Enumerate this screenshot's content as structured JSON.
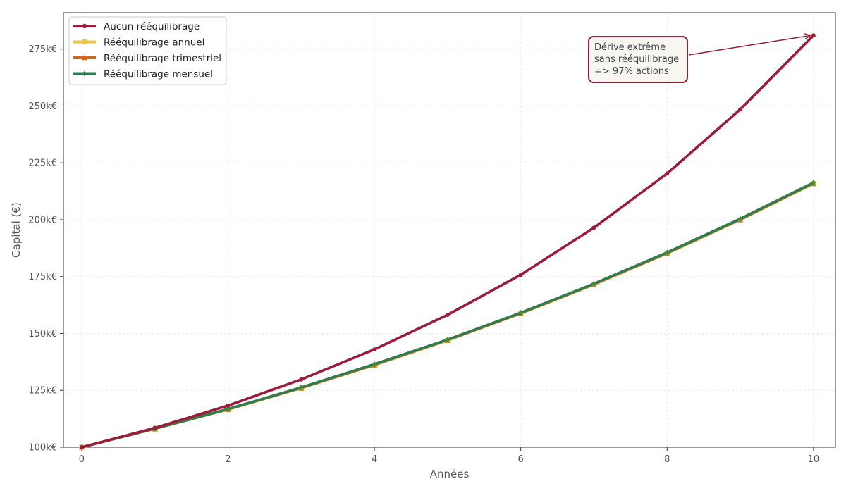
{
  "chart_data": {
    "type": "line",
    "xlabel": "Années",
    "ylabel": "Capital (€)",
    "xlim": [
      -0.25,
      10.3
    ],
    "ylim": [
      100000,
      291000
    ],
    "x_ticks": [
      0,
      2,
      4,
      6,
      8,
      10
    ],
    "x_tick_labels": [
      "0",
      "2",
      "4",
      "6",
      "8",
      "10"
    ],
    "y_ticks": [
      100000,
      125000,
      150000,
      175000,
      200000,
      225000,
      250000,
      275000
    ],
    "y_tick_labels": [
      "100k€",
      "125k€",
      "150k€",
      "175k€",
      "200k€",
      "225k€",
      "250k€",
      "275k€"
    ],
    "grid": true,
    "legend_position": "top-left",
    "x": [
      0,
      1,
      2,
      3,
      4,
      5,
      6,
      7,
      8,
      9,
      10
    ],
    "series": [
      {
        "name": "Aucun rééquilibrage",
        "color": "#9b1b3a",
        "marker": "circle",
        "values": [
          100000,
          108500,
          118300,
          129800,
          143000,
          158200,
          175800,
          196500,
          220300,
          248500,
          281000
        ]
      },
      {
        "name": "Rééquilibrage annuel",
        "color": "#e8c547",
        "marker": "square",
        "values": [
          100000,
          108000,
          116500,
          125900,
          136000,
          146900,
          158700,
          171400,
          185100,
          199900,
          215800
        ]
      },
      {
        "name": "Rééquilibrage trimestriel",
        "color": "#d2691e",
        "marker": "triangle",
        "values": [
          100000,
          108000,
          116500,
          125900,
          136000,
          146900,
          158700,
          171400,
          185100,
          199900,
          215800
        ]
      },
      {
        "name": "Rééquilibrage mensuel",
        "color": "#2e7d4f",
        "marker": "diamond",
        "values": [
          100000,
          108200,
          116800,
          126300,
          136500,
          147300,
          159100,
          171900,
          185600,
          200400,
          216300
        ]
      }
    ],
    "annotations": [
      {
        "lines": [
          "Dérive extrême",
          "sans rééquilibrage",
          "=> 97% actions"
        ],
        "target_x": 10,
        "target_y": 281000,
        "color": "#9b1b3a"
      }
    ]
  }
}
